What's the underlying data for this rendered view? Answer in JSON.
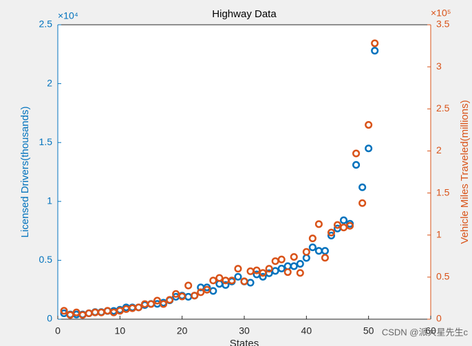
{
  "chart_data": {
    "type": "scatter",
    "title": "Highway Data",
    "x_label": "States",
    "y_label": "Licensed Drivers(thousands)",
    "y2_label": "Vehicle Miles Traveled(millions)",
    "y_exponent": "×10⁴",
    "y2_exponent": "×10⁵",
    "watermark": "CSDN @派大星先生c",
    "x": [
      1,
      2,
      3,
      4,
      5,
      6,
      7,
      8,
      9,
      10,
      11,
      12,
      13,
      14,
      15,
      16,
      17,
      18,
      19,
      20,
      21,
      22,
      23,
      24,
      25,
      26,
      27,
      28,
      29,
      30,
      31,
      32,
      33,
      34,
      35,
      36,
      37,
      38,
      39,
      40,
      41,
      42,
      43,
      44,
      45,
      46,
      47,
      48,
      49,
      50,
      51
    ],
    "xlim": [
      0,
      60
    ],
    "xticks": [
      0,
      10,
      20,
      30,
      40,
      50,
      60
    ],
    "ylim": [
      0,
      25000
    ],
    "yticks": [
      {
        "value": 0,
        "label": "0"
      },
      {
        "value": 5000,
        "label": "0.5"
      },
      {
        "value": 10000,
        "label": "1"
      },
      {
        "value": 15000,
        "label": "1.5"
      },
      {
        "value": 20000,
        "label": "2"
      },
      {
        "value": 25000,
        "label": "2.5"
      }
    ],
    "y2lim": [
      0,
      350000
    ],
    "y2ticks": [
      {
        "value": 0,
        "label": "0"
      },
      {
        "value": 50000,
        "label": "0.5"
      },
      {
        "value": 100000,
        "label": "1"
      },
      {
        "value": 150000,
        "label": "1.5"
      },
      {
        "value": 200000,
        "label": "2"
      },
      {
        "value": 250000,
        "label": "2.5"
      },
      {
        "value": 300000,
        "label": "3"
      },
      {
        "value": 350000,
        "label": "3.5"
      }
    ],
    "series": [
      {
        "color": "#0072BD",
        "values": [
          500,
          400,
          400,
          400,
          500,
          600,
          600,
          700,
          700,
          800,
          1000,
          1000,
          1000,
          1200,
          1300,
          1300,
          1400,
          1600,
          1900,
          2000,
          1900,
          2000,
          2700,
          2700,
          2400,
          3000,
          2900,
          3200,
          3600,
          3200,
          3100,
          3800,
          3600,
          3900,
          4100,
          4300,
          4500,
          4500,
          4700,
          5200,
          6100,
          5800,
          5800,
          7100,
          7700,
          8400,
          8100,
          13100,
          11200,
          14500,
          22800
        ]
      },
      {
        "color": "#D95319",
        "axis": "y2",
        "values": [
          10000,
          5000,
          8000,
          5000,
          7000,
          8000,
          8000,
          10000,
          8000,
          10000,
          12000,
          13000,
          14000,
          18000,
          18000,
          22000,
          18000,
          23000,
          30000,
          27000,
          40000,
          28000,
          32000,
          35000,
          46000,
          49000,
          46000,
          46000,
          60000,
          45000,
          57000,
          58000,
          55000,
          60000,
          69000,
          71000,
          56000,
          74000,
          55000,
          80000,
          96000,
          113000,
          73000,
          103000,
          112000,
          109000,
          111000,
          197000,
          138000,
          231000,
          328000
        ]
      }
    ]
  }
}
